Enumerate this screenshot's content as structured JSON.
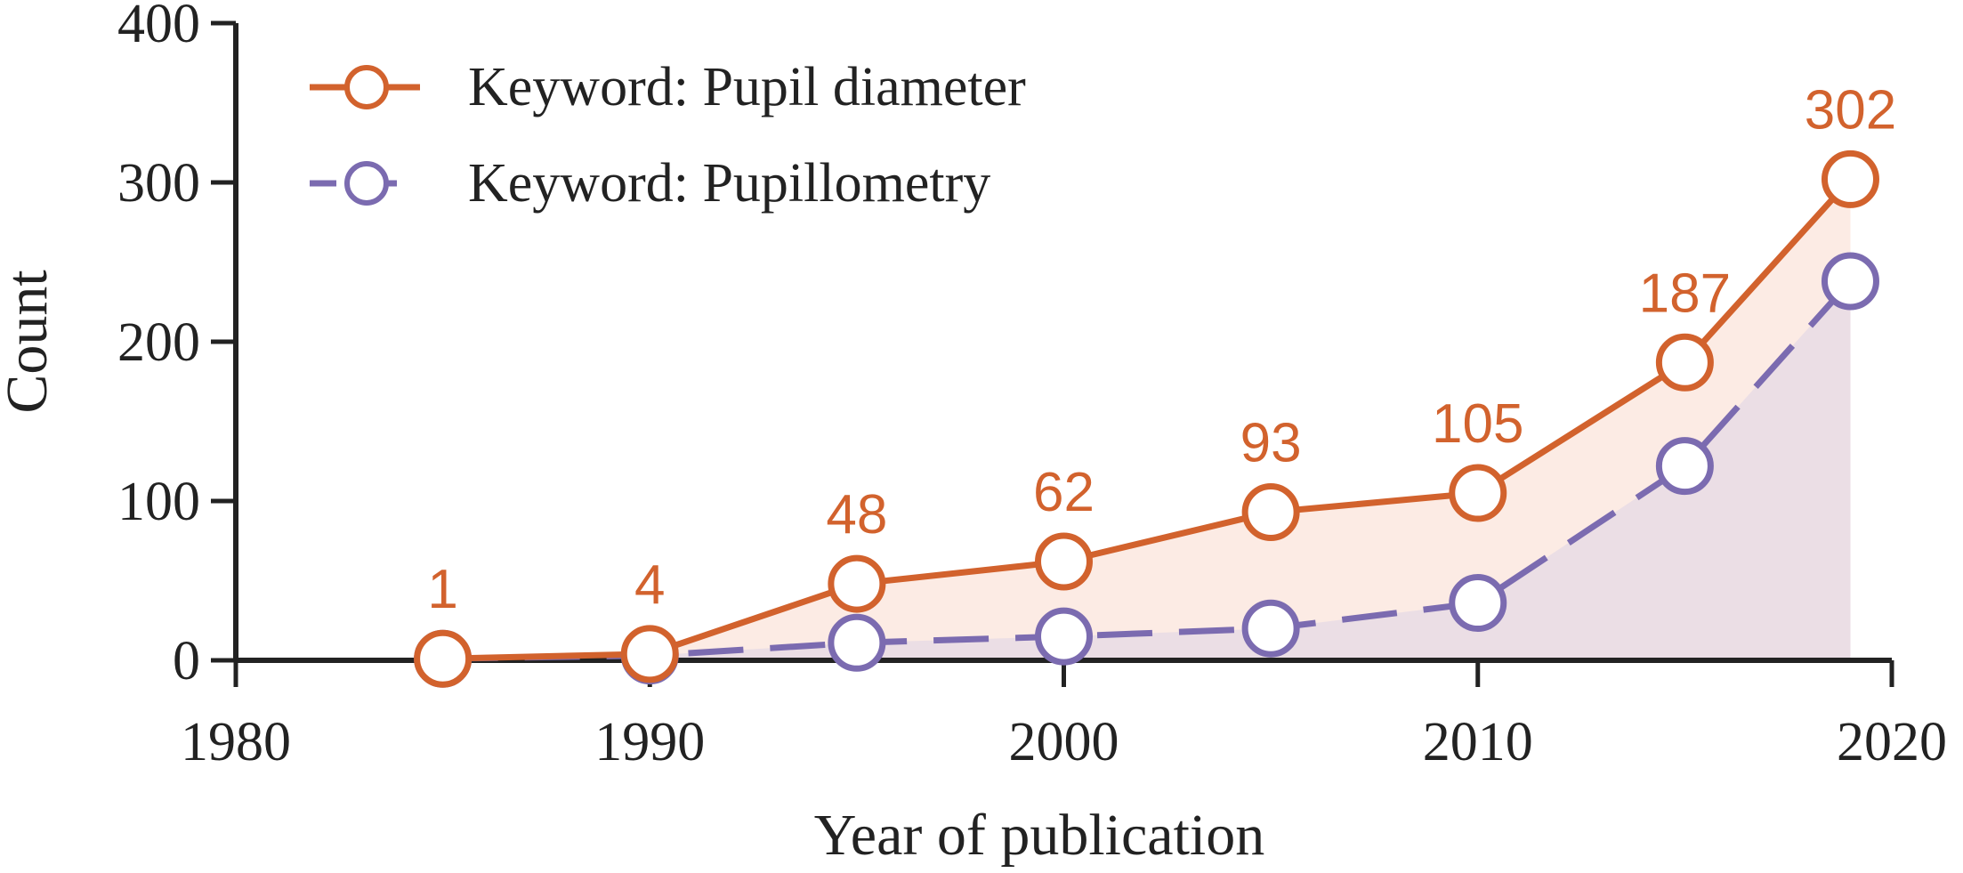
{
  "chart_data": {
    "type": "line",
    "title": "",
    "xlabel": "Year of publication",
    "ylabel": "Count",
    "xlim": [
      1980,
      2020
    ],
    "ylim": [
      0,
      400
    ],
    "xticks": [
      1980,
      1990,
      2000,
      2010,
      2020
    ],
    "yticks": [
      0,
      100,
      200,
      300,
      400
    ],
    "grid": false,
    "legend_position": "top-left",
    "series": [
      {
        "name": "Keyword: Pupil diameter",
        "color": "#d2622d",
        "fill": "#fcebe4",
        "line_style": "solid",
        "x": [
          1985,
          1990,
          1995,
          2000,
          2005,
          2010,
          2015,
          2019
        ],
        "y": [
          1,
          4,
          48,
          62,
          93,
          105,
          187,
          302
        ],
        "labels": [
          "1",
          "4",
          "48",
          "62",
          "93",
          "105",
          "187",
          "302"
        ]
      },
      {
        "name": "Keyword: Pupillometry",
        "color": "#7b6bb0",
        "fill": "#ebdee5",
        "line_style": "dashed",
        "x": [
          1985,
          1990,
          1995,
          2000,
          2005,
          2010,
          2015,
          2019
        ],
        "y": [
          1,
          3,
          11,
          15,
          20,
          36,
          122,
          238
        ]
      }
    ]
  }
}
